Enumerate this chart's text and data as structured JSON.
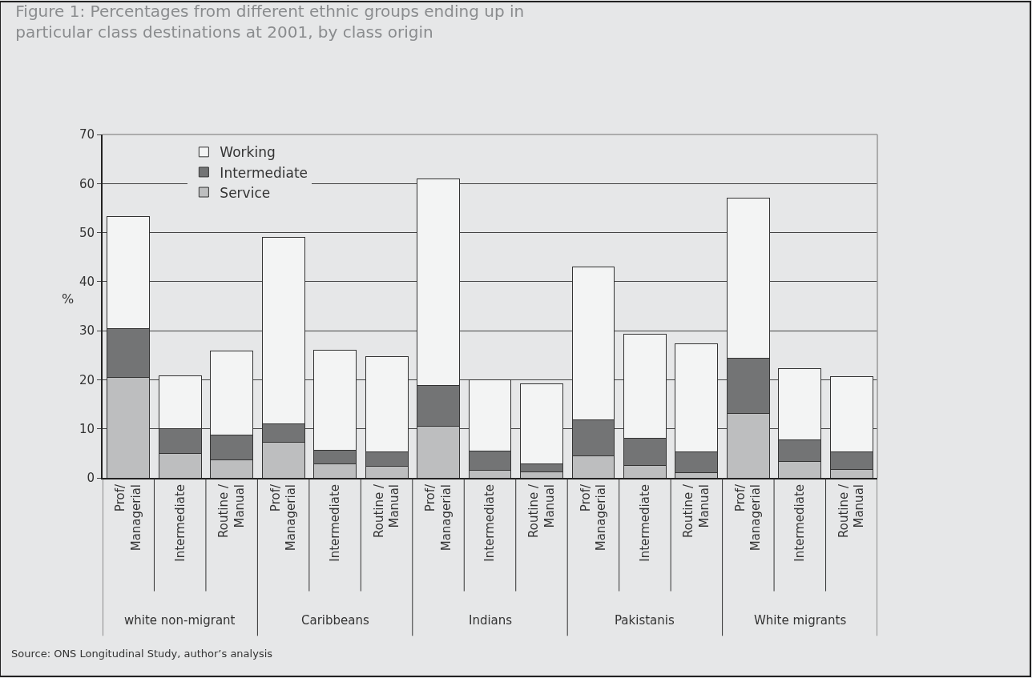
{
  "chart_data": {
    "type": "bar",
    "stacked": true,
    "title": "Figure 1: Percentages from different ethnic groups ending up in\nparticular class destinations at 2001, by class origin",
    "ylabel": "%",
    "categories": [
      "Prof/\nManagerial",
      "Intermediate",
      "Routine /\nManual",
      "Prof/\nManagerial",
      "Intermediate",
      "Routine /\nManual",
      "Prof/\nManagerial",
      "Intermediate",
      "Routine /\nManual",
      "Prof/\nManagerial",
      "Intermediate",
      "Routine /\nManual",
      "Prof/\nManagerial",
      "Intermediate",
      "Routine /\nManual"
    ],
    "series": [
      {
        "name": "Service",
        "color": "#bdbebf",
        "values": [
          20.5,
          5,
          3.7,
          7.2,
          2.9,
          2.4,
          10.5,
          1.5,
          1.2,
          4.5,
          2.5,
          1,
          13.2,
          3.4,
          1.7
        ]
      },
      {
        "name": "Intermediate",
        "color": "#737475",
        "values": [
          10,
          5,
          5.1,
          3.8,
          2.7,
          2.9,
          8.3,
          4,
          1.6,
          7.3,
          5.6,
          4.3,
          11.2,
          4.4,
          3.6
        ]
      },
      {
        "name": "Working",
        "color": "#f3f4f4",
        "values": [
          22.7,
          10.8,
          17,
          38,
          20.5,
          19.5,
          42.1,
          14.5,
          16.4,
          31.2,
          21.2,
          22.1,
          32.6,
          14.5,
          15.3
        ]
      }
    ],
    "ylim": [
      0,
      70
    ],
    "yticks": [
      0,
      10,
      20,
      30,
      40,
      50,
      60,
      70
    ],
    "grid": "y",
    "legend": "top left",
    "annotations": [
      "white non-migrant",
      "Caribbeans",
      "Indians",
      "Pakistanis",
      "White migrants",
      "Source: ONS Longitudinal Study, author’s analysis"
    ]
  }
}
